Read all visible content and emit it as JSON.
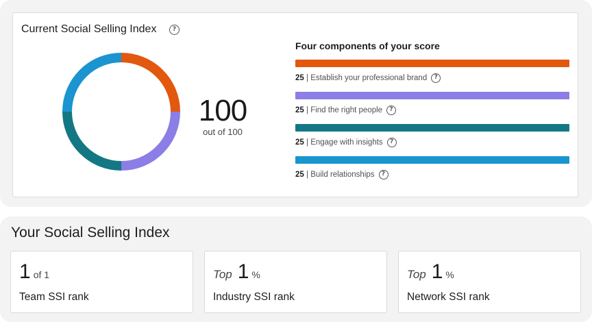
{
  "score_card": {
    "title": "Current Social Selling Index",
    "score": "100",
    "score_suffix": "out of 100",
    "components_heading": "Four components of your score",
    "components": [
      {
        "score": "25",
        "label": "Establish your professional brand",
        "color": "#e2580e"
      },
      {
        "score": "25",
        "label": "Find the right people",
        "color": "#8b7ee6"
      },
      {
        "score": "25",
        "label": "Engage with insights",
        "color": "#137883"
      },
      {
        "score": "25",
        "label": "Build relationships",
        "color": "#1b94d0"
      }
    ]
  },
  "ssi_section": {
    "title": "Your Social Selling Index",
    "ranks": [
      {
        "prefix": "",
        "value": "1",
        "suffix": "of 1",
        "label": "Team SSI rank"
      },
      {
        "prefix": "Top",
        "value": "1",
        "suffix": "%",
        "label": "Industry SSI rank"
      },
      {
        "prefix": "Top",
        "value": "1",
        "suffix": "%",
        "label": "Network SSI rank"
      }
    ]
  }
}
